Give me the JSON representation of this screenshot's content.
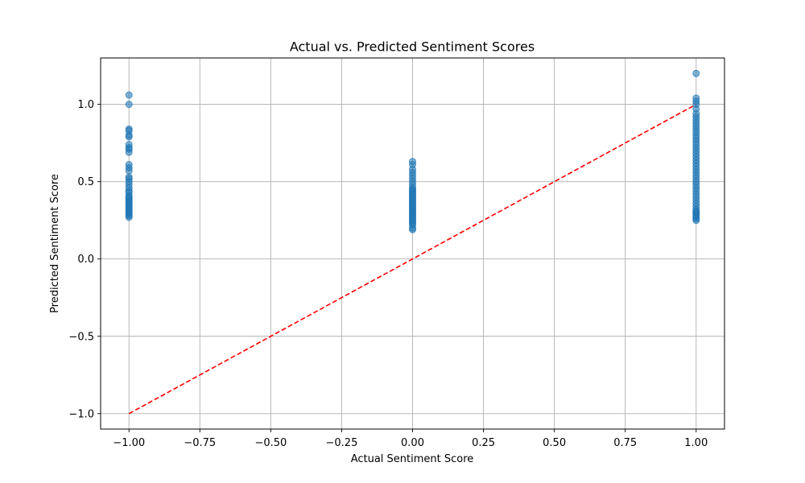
{
  "chart_data": {
    "type": "scatter",
    "title": "Actual vs. Predicted Sentiment Scores",
    "xlabel": "Actual Sentiment Score",
    "ylabel": "Predicted Sentiment Score",
    "xlim": [
      -1.1,
      1.1
    ],
    "ylim": [
      -1.1,
      1.3
    ],
    "x_ticks": [
      -1.0,
      -0.75,
      -0.5,
      -0.25,
      0.0,
      0.25,
      0.5,
      0.75,
      1.0
    ],
    "x_tick_labels": [
      "−1.00",
      "−0.75",
      "−0.50",
      "−0.25",
      "0.00",
      "0.25",
      "0.50",
      "0.75",
      "1.00"
    ],
    "y_ticks": [
      -1.0,
      -0.5,
      0.0,
      0.5,
      1.0
    ],
    "y_tick_labels": [
      "−1.0",
      "−0.5",
      "0.0",
      "0.5",
      "1.0"
    ],
    "grid": true,
    "point_color": "#1f77b4",
    "line_color": "#ff0000",
    "series": [
      {
        "x": -1,
        "y": [
          1.06,
          1.0,
          0.84,
          0.83,
          0.8,
          0.79,
          0.74,
          0.72,
          0.71,
          0.69,
          0.61,
          0.59,
          0.57,
          0.53,
          0.52,
          0.5,
          0.48,
          0.46,
          0.44,
          0.43,
          0.41,
          0.4,
          0.39,
          0.38,
          0.37,
          0.36,
          0.35,
          0.34,
          0.33,
          0.32,
          0.31,
          0.3,
          0.29,
          0.28,
          0.27
        ]
      },
      {
        "x": 0,
        "y": [
          0.63,
          0.61,
          0.58,
          0.56,
          0.54,
          0.52,
          0.5,
          0.48,
          0.46,
          0.45,
          0.44,
          0.43,
          0.42,
          0.41,
          0.4,
          0.39,
          0.38,
          0.37,
          0.36,
          0.35,
          0.34,
          0.33,
          0.32,
          0.31,
          0.3,
          0.29,
          0.28,
          0.27,
          0.26,
          0.25,
          0.24,
          0.23,
          0.22,
          0.2,
          0.19
        ]
      },
      {
        "x": 1,
        "y": [
          1.2,
          1.04,
          1.02,
          1.0,
          0.97,
          0.94,
          0.92,
          0.9,
          0.88,
          0.86,
          0.84,
          0.82,
          0.8,
          0.78,
          0.76,
          0.74,
          0.72,
          0.7,
          0.68,
          0.66,
          0.64,
          0.62,
          0.6,
          0.58,
          0.56,
          0.54,
          0.52,
          0.5,
          0.48,
          0.46,
          0.44,
          0.42,
          0.4,
          0.38,
          0.36,
          0.34,
          0.32,
          0.31,
          0.3,
          0.29,
          0.28,
          0.27,
          0.26,
          0.25
        ]
      }
    ],
    "reference_line": {
      "x": [
        -1,
        1
      ],
      "y": [
        -1,
        1
      ],
      "style": "dashed"
    }
  }
}
